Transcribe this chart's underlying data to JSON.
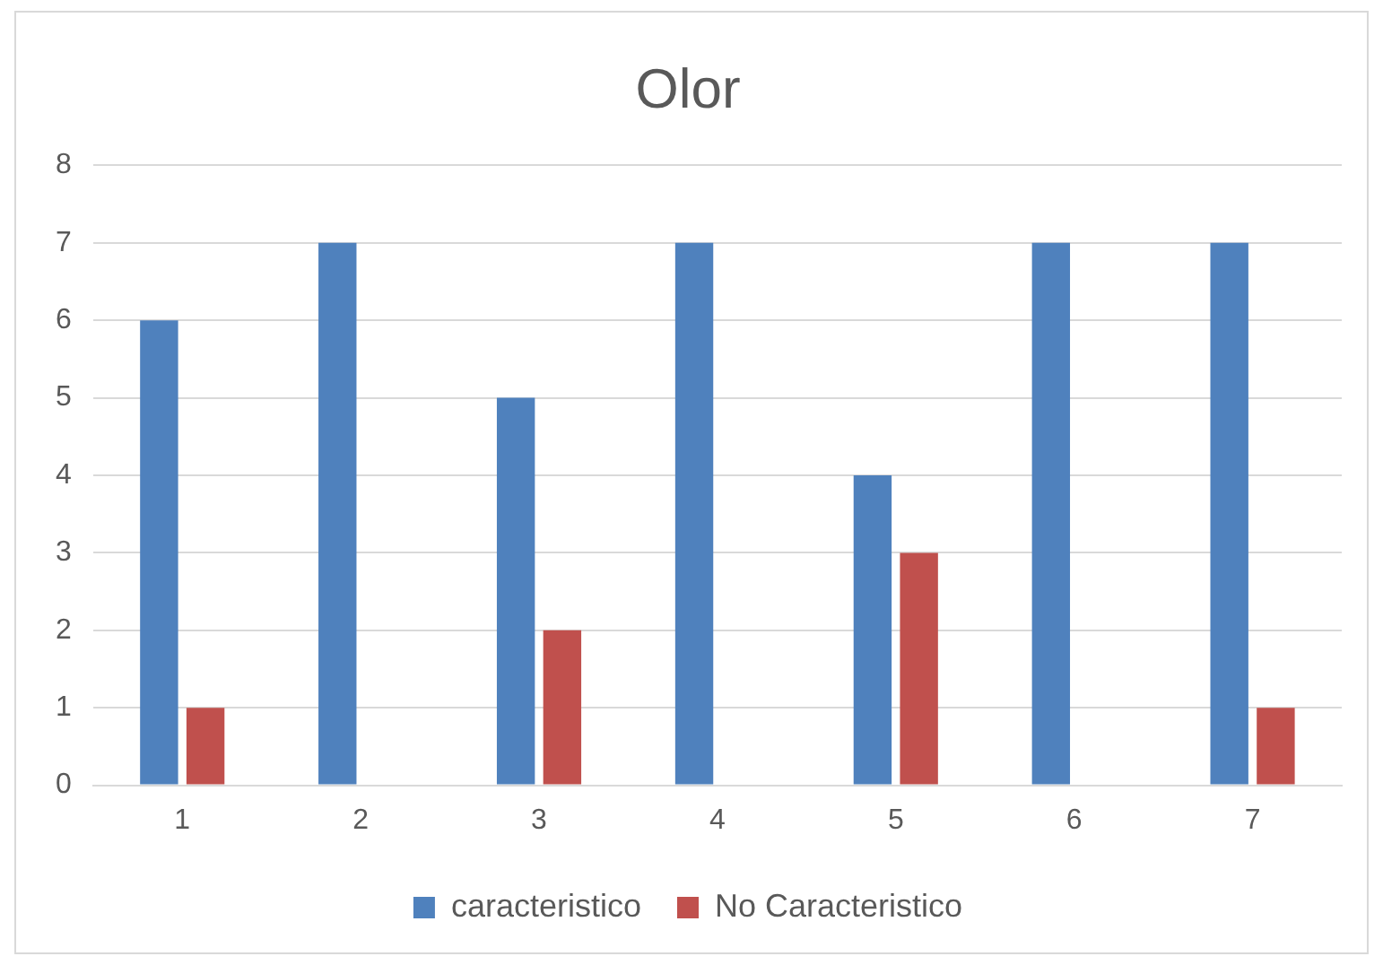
{
  "chart_data": {
    "type": "bar",
    "title": "Olor",
    "categories": [
      "1",
      "2",
      "3",
      "4",
      "5",
      "6",
      "7"
    ],
    "series": [
      {
        "name": "caracteristico",
        "color": "#4f81bd",
        "values": [
          6,
          7,
          5,
          7,
          4,
          7,
          7
        ]
      },
      {
        "name": "No Caracteristico",
        "color": "#c0504d",
        "values": [
          1,
          0,
          2,
          0,
          3,
          0,
          1
        ]
      }
    ],
    "ylim": [
      0,
      8
    ],
    "yticks": [
      0,
      1,
      2,
      3,
      4,
      5,
      6,
      7,
      8
    ],
    "grid": "y",
    "legend": "bottom"
  }
}
